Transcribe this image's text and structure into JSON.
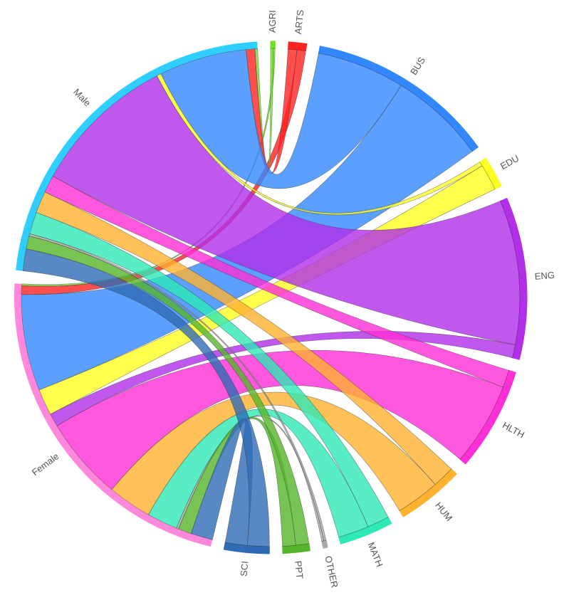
{
  "chart_data": {
    "type": "chord",
    "categories": [
      "AGRI",
      "ARTS",
      "BUS",
      "EDU",
      "ENG",
      "HLTH",
      "HUM",
      "MATH",
      "OTHER",
      "PPT",
      "SCI"
    ],
    "category_colors": [
      "#6fe32a",
      "#ff2222",
      "#3388ff",
      "#ffff22",
      "#b22ee8",
      "#ff2ed6",
      "#ffb22e",
      "#2ee8b6",
      "#aaaaaa",
      "#55b52a",
      "#2f6cb5"
    ],
    "series": [
      {
        "name": "Female",
        "color": "#ff88dd",
        "values": [
          0.4,
          2,
          22,
          6,
          3,
          19,
          10,
          7,
          0.5,
          3,
          5
        ]
      },
      {
        "name": "Male",
        "color": "#2ecfff",
        "values": [
          0.6,
          2,
          20,
          1,
          33,
          4,
          5,
          5,
          0.5,
          3,
          5
        ]
      }
    ]
  }
}
